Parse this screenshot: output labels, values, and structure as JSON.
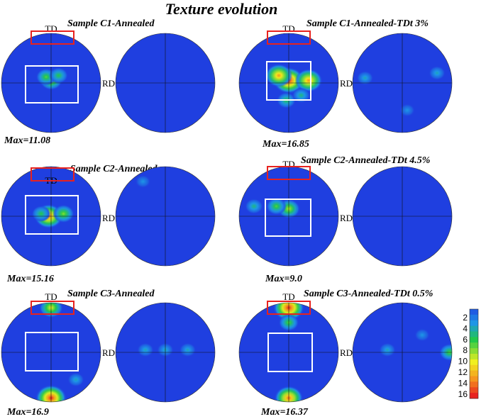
{
  "title": "Texture evolution",
  "axis_labels": {
    "td": "TD",
    "rd": "RD"
  },
  "colors": {
    "low": "#1f3fe0",
    "mid": "#22c84a",
    "high_yellow": "#f0f01e",
    "peak": "#e8221e",
    "highlight_box": "#e8221e",
    "region_box": "#ffffff",
    "grid_line": "#111111"
  },
  "panels": [
    {
      "sample": "Sample C1-Annealed",
      "max_label": "Max=11.08",
      "max_value": 11.08,
      "hotspots_left": [
        {
          "u": 0.0,
          "v": 0.05,
          "level": 9
        },
        {
          "u": -0.1,
          "v": 0.12,
          "level": 7
        },
        {
          "u": 0.15,
          "v": 0.15,
          "level": 6
        }
      ],
      "hotspots_right": []
    },
    {
      "sample": "Sample C1-Annealed-TDt 3%",
      "max_label": "Max=16.85",
      "max_value": 16.85,
      "hotspots_left": [
        {
          "u": 0.0,
          "v": 0.05,
          "level": 16
        },
        {
          "u": -0.2,
          "v": 0.15,
          "level": 13
        },
        {
          "u": 0.4,
          "v": 0.05,
          "level": 13
        },
        {
          "u": -0.05,
          "v": -0.35,
          "level": 6
        },
        {
          "u": 0.25,
          "v": -0.25,
          "level": 5
        }
      ],
      "hotspots_right": [
        {
          "u": -0.75,
          "v": 0.1,
          "level": 4
        },
        {
          "u": 0.7,
          "v": 0.2,
          "level": 4
        },
        {
          "u": 0.1,
          "v": -0.55,
          "level": 3
        }
      ]
    },
    {
      "sample": "Sample C2-Annealed",
      "max_label": "Max=15.16",
      "max_value": 15.16,
      "hotspots_left": [
        {
          "u": -0.05,
          "v": 0.0,
          "level": 14
        },
        {
          "u": 0.25,
          "v": 0.05,
          "level": 8
        },
        {
          "u": -0.2,
          "v": 0.05,
          "level": 6
        }
      ],
      "hotspots_right": [
        {
          "u": -0.45,
          "v": 0.7,
          "level": 3
        }
      ]
    },
    {
      "sample": "Sample C2-Annealed-TDt 4.5%",
      "max_label": "Max=9.0",
      "max_value": 9.0,
      "hotspots_left": [
        {
          "u": 0.0,
          "v": 0.15,
          "level": 9
        },
        {
          "u": -0.25,
          "v": 0.2,
          "level": 7
        },
        {
          "u": -0.7,
          "v": 0.2,
          "level": 5
        }
      ],
      "hotspots_right": []
    },
    {
      "sample": "Sample C3-Annealed",
      "max_label": "Max=16.9",
      "max_value": 16.9,
      "hotspots_left": [
        {
          "u": 0.0,
          "v": -0.92,
          "level": 16
        },
        {
          "u": 0.0,
          "v": 0.9,
          "level": 10
        },
        {
          "u": 0.5,
          "v": -0.55,
          "level": 4
        }
      ],
      "hotspots_right": [
        {
          "u": -0.4,
          "v": 0.05,
          "level": 4
        },
        {
          "u": 0.0,
          "v": 0.05,
          "level": 4
        },
        {
          "u": 0.45,
          "v": 0.05,
          "level": 4
        }
      ]
    },
    {
      "sample": "Sample C3-Annealed-TDt 0.5%",
      "max_label": "Max=16.37",
      "max_value": 16.37,
      "hotspots_left": [
        {
          "u": 0.0,
          "v": -0.92,
          "level": 14
        },
        {
          "u": 0.0,
          "v": 0.9,
          "level": 16
        },
        {
          "u": 0.0,
          "v": 0.6,
          "level": 7
        }
      ],
      "hotspots_right": [
        {
          "u": 0.95,
          "v": 0.0,
          "level": 7
        },
        {
          "u": -0.3,
          "v": 0.05,
          "level": 4
        },
        {
          "u": 0.4,
          "v": 0.35,
          "level": 3
        }
      ]
    }
  ],
  "legend": {
    "ticks": [
      "2",
      "4",
      "6",
      "8",
      "10",
      "12",
      "14",
      "16"
    ],
    "levels": [
      1,
      2,
      3,
      4,
      5,
      6,
      7,
      8,
      9,
      10,
      11,
      12,
      13,
      14,
      15,
      16
    ]
  }
}
